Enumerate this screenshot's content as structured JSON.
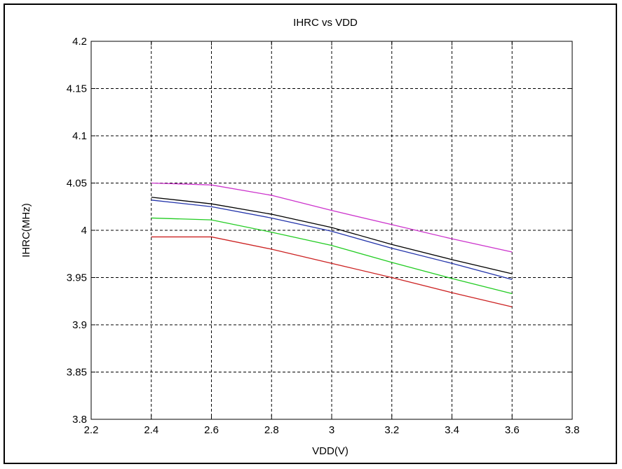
{
  "chart_data": {
    "type": "line",
    "title": "IHRC vs VDD",
    "xlabel": "VDD(V)",
    "ylabel": "IHRC(MHz)",
    "xlim": [
      2.2,
      3.8
    ],
    "ylim": [
      3.8,
      4.2
    ],
    "xticks": [
      "2.2",
      "2.4",
      "2.6",
      "2.8",
      "3",
      "3.2",
      "3.4",
      "3.6",
      "3.8"
    ],
    "yticks": [
      "3.8",
      "3.85",
      "3.9",
      "3.95",
      "4",
      "4.05",
      "4.1",
      "4.15",
      "4.2"
    ],
    "grid": true,
    "x": [
      2.4,
      2.6,
      2.8,
      3.0,
      3.2,
      3.4,
      3.6
    ],
    "series": [
      {
        "color": "#cc33cc",
        "values": [
          4.05,
          4.048,
          4.037,
          4.021,
          4.006,
          3.991,
          3.977
        ]
      },
      {
        "color": "#000000",
        "values": [
          4.035,
          4.028,
          4.017,
          4.003,
          3.985,
          3.969,
          3.954
        ]
      },
      {
        "color": "#2233aa",
        "values": [
          4.032,
          4.025,
          4.013,
          3.999,
          3.981,
          3.965,
          3.948
        ]
      },
      {
        "color": "#22cc22",
        "values": [
          4.013,
          4.011,
          3.998,
          3.984,
          3.966,
          3.949,
          3.933
        ]
      },
      {
        "color": "#cc2222",
        "values": [
          3.993,
          3.993,
          3.98,
          3.965,
          3.95,
          3.934,
          3.919
        ]
      }
    ]
  }
}
